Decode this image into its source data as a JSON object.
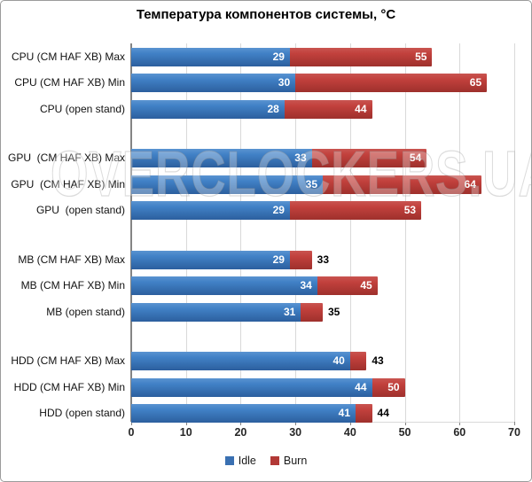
{
  "title": "Температура компонентов системы, °C",
  "watermark": "OVERCLOCKERS.UA",
  "chart_data": {
    "type": "bar",
    "orientation": "horizontal",
    "title": "Температура компонентов системы, °C",
    "categories": [
      "CPU (CM HAF XB) Max",
      "CPU (CM HAF XB) Min",
      "CPU (open stand)",
      "GPU  (CM HAF XB) Max",
      "GPU  (CM HAF XB) Min",
      "GPU  (open stand)",
      "MB (CM HAF XB) Max",
      "MB (CM HAF XB) Min",
      "MB (open stand)",
      "HDD (CM HAF XB) Max",
      "HDD (CM HAF XB) Min",
      "HDD (open stand)"
    ],
    "series": [
      {
        "name": "Idle",
        "color": "#3A70B2",
        "values": [
          29,
          30,
          28,
          33,
          35,
          29,
          29,
          34,
          31,
          40,
          44,
          41
        ]
      },
      {
        "name": "Burn",
        "color": "#B23936",
        "values": [
          55,
          65,
          44,
          54,
          64,
          53,
          33,
          45,
          35,
          43,
          50,
          44
        ]
      }
    ],
    "xlim": [
      0,
      70
    ],
    "xticks": [
      0,
      10,
      20,
      30,
      40,
      50,
      60,
      70
    ],
    "group_size": 3,
    "grid": true,
    "legend_position": "bottom",
    "bar_style": "overlapped: Burn bar drawn from 0, Idle bar overlaid from 0"
  },
  "colors": {
    "idle_gradient_top": "#5A93D1",
    "idle_gradient_bottom": "#2C5F9E",
    "burn_gradient_top": "#C95450",
    "burn_gradient_bottom": "#9E302C",
    "gridline": "#D9D9D9",
    "axis": "#848484",
    "value_label_inside": "#FFFFFF",
    "value_label_outside": "#000000",
    "background": "#FFFFFF",
    "border": "#9B9B9B"
  },
  "legend": {
    "items": [
      {
        "label": "Idle",
        "color": "#3A70B2"
      },
      {
        "label": "Burn",
        "color": "#B23936"
      }
    ]
  }
}
